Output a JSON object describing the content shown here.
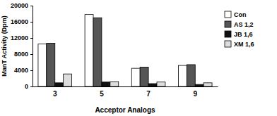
{
  "chart_data": {
    "type": "bar",
    "x_label": "Acceptor Analogs",
    "y_label": "ManT Activity (Dpm)",
    "categories": [
      "3",
      "5",
      "7",
      "9"
    ],
    "series": [
      {
        "name": "Con",
        "color": "#ffffff",
        "values": [
          10500,
          17800,
          4500,
          5200
        ]
      },
      {
        "name": "AS 1,2",
        "color": "#555555",
        "values": [
          10700,
          17000,
          4800,
          5400
        ]
      },
      {
        "name": "JB 1,6",
        "color": "#111111",
        "values": [
          900,
          1100,
          700,
          500
        ]
      },
      {
        "name": "XM 1,6",
        "color": "#dddddd",
        "values": [
          3100,
          1200,
          1100,
          900
        ]
      }
    ],
    "ylim": [
      0,
      20000
    ],
    "yticks": [
      0,
      4000,
      8000,
      12000,
      16000,
      20000
    ],
    "grid": false,
    "legend": "right"
  }
}
